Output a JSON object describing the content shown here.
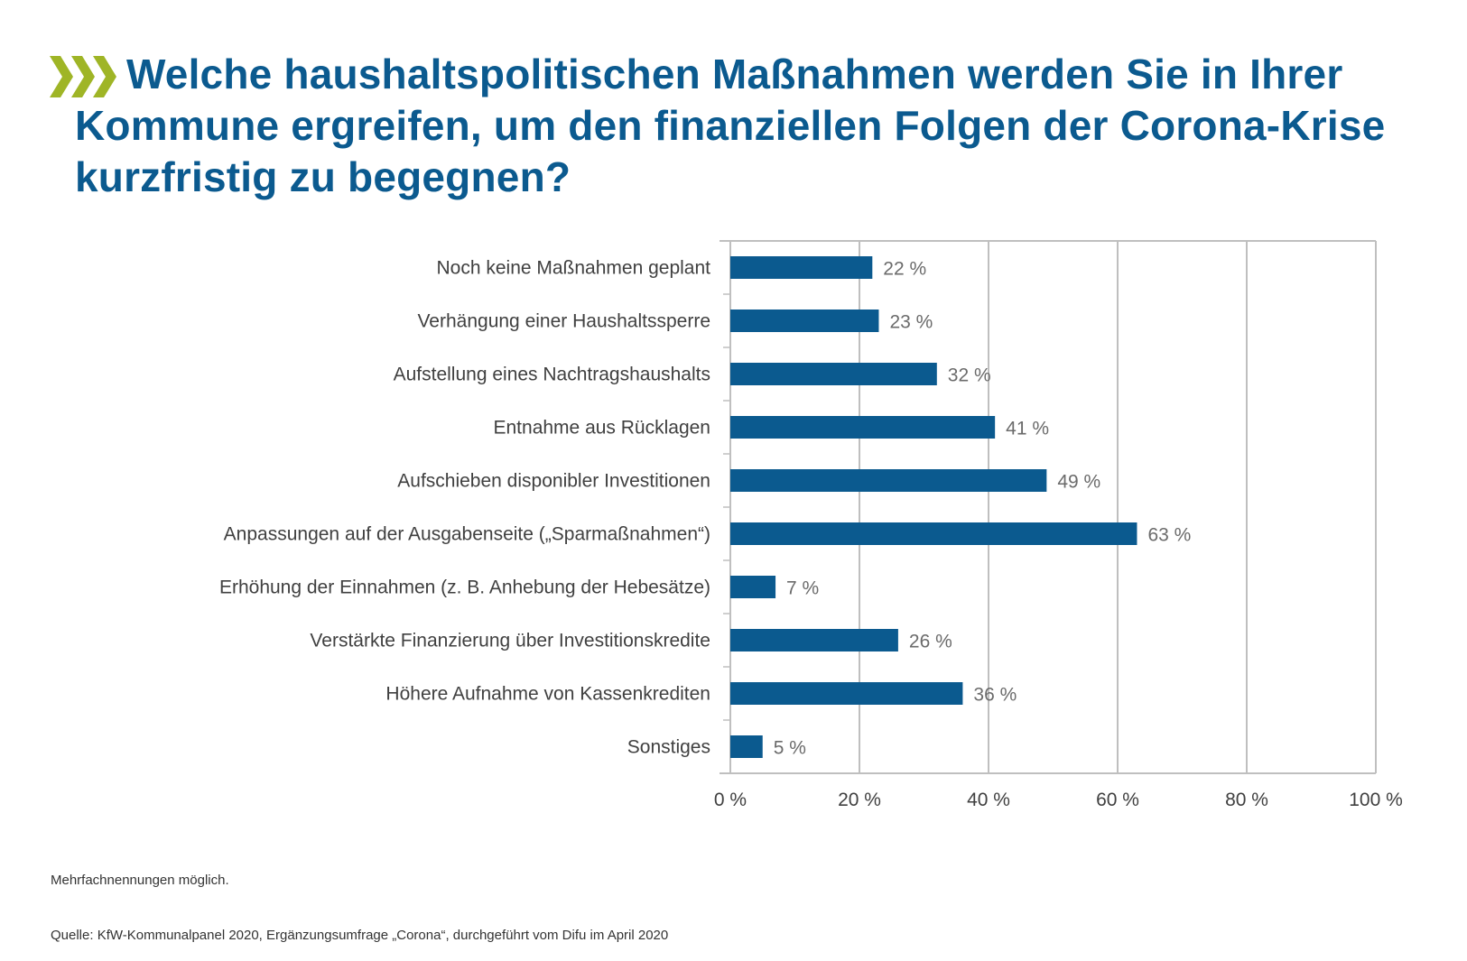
{
  "header": {
    "title": "Welche haushaltspolitischen Maßnahmen werden Sie in Ihrer Kommune ergreifen, um den finanziellen Folgen der Corona-Krise kurzfristig zu begegnen?",
    "title_icon": "triple-chevron-right-icon",
    "accent_color": "#9fb526",
    "title_color": "#0b5a8f"
  },
  "chart_data": {
    "type": "bar",
    "orientation": "horizontal",
    "title": "Welche haushaltspolitischen Maßnahmen werden Sie in Ihrer Kommune ergreifen, um den finanziellen Folgen der Corona-Krise kurzfristig zu begegnen?",
    "categories": [
      "Noch keine Maßnahmen geplant",
      "Verhängung einer Haushaltssperre",
      "Aufstellung eines Nachtragshaushalts",
      "Entnahme aus Rücklagen",
      "Aufschieben disponibler Investitionen",
      "Anpassungen auf der Ausgabenseite („Sparmaßnahmen“)",
      "Erhöhung der Einnahmen (z. B. Anhebung der Hebesätze)",
      "Verstärkte Finanzierung über Investitionskredite",
      "Höhere Aufnahme von Kassenkrediten",
      "Sonstiges"
    ],
    "values": [
      22,
      23,
      32,
      41,
      49,
      63,
      7,
      26,
      36,
      5
    ],
    "value_labels": [
      "22 %",
      "23 %",
      "32 %",
      "41 %",
      "49 %",
      "63 %",
      "7 %",
      "26 %",
      "36 %",
      "5 %"
    ],
    "xlabel": "",
    "ylabel": "",
    "xlim": [
      0,
      100
    ],
    "xticks": [
      0,
      20,
      40,
      60,
      80,
      100
    ],
    "xtick_labels": [
      "0 %",
      "20 %",
      "40 %",
      "60 %",
      "80 %",
      "100 %"
    ],
    "grid": true,
    "legend": "none",
    "bar_color": "#0b5a8f",
    "grid_color": "#bfbfbf"
  },
  "footer": {
    "note": "Mehrfachnennungen möglich.",
    "source": "Quelle: KfW-Kommunalpanel 2020, Ergänzungsumfrage „Corona“, durchgeführt vom Difu im April 2020"
  }
}
